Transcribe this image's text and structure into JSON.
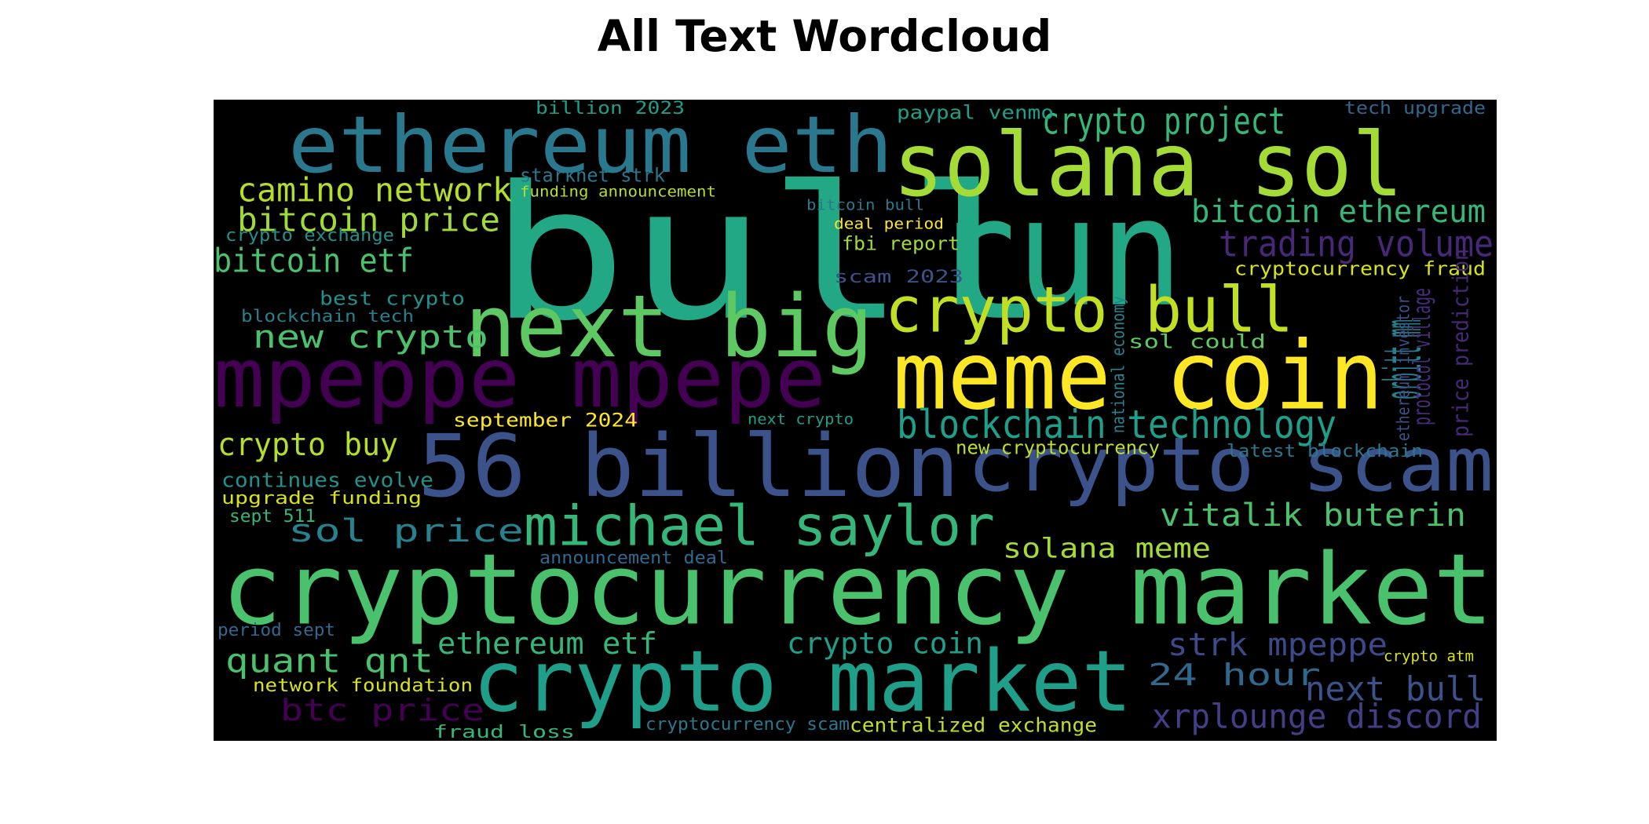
{
  "title": "All Text Wordcloud",
  "words": [
    {
      "text": "bull",
      "color": "#22a884"
    },
    {
      "text": "run",
      "color": "#22a884"
    },
    {
      "text": "ethereum eth",
      "color": "#2a788e"
    },
    {
      "text": "solana sol",
      "color": "#a5db36"
    },
    {
      "text": "next big",
      "color": "#5ec962"
    },
    {
      "text": "crypto bull",
      "color": "#c2df23"
    },
    {
      "text": "meme coin",
      "color": "#fde725"
    },
    {
      "text": "mpeppe mpepe",
      "color": "#440154"
    },
    {
      "text": "56 billion",
      "color": "#3b528b"
    },
    {
      "text": "crypto scam",
      "color": "#3b528b"
    },
    {
      "text": "cryptocurrency market",
      "color": "#4ac16d"
    },
    {
      "text": "crypto market",
      "color": "#1f9e89"
    },
    {
      "text": "michael saylor",
      "color": "#35b779"
    },
    {
      "text": "crypto project",
      "color": "#35b779"
    },
    {
      "text": "camino network",
      "color": "#b5de2b"
    },
    {
      "text": "bitcoin price",
      "color": "#a0da39"
    },
    {
      "text": "bitcoin etf",
      "color": "#4ac16d"
    },
    {
      "text": "bitcoin ethereum",
      "color": "#35b779"
    },
    {
      "text": "trading volume",
      "color": "#482878"
    },
    {
      "text": "blockchain technology",
      "color": "#1f9e89"
    },
    {
      "text": "vitalik buterin",
      "color": "#4ac16d"
    },
    {
      "text": "orbitt mm",
      "color": "#26828e"
    },
    {
      "text": "new crypto",
      "color": "#4ac16d"
    },
    {
      "text": "crypto buy",
      "color": "#b5de2b"
    },
    {
      "text": "sol price",
      "color": "#26828e"
    },
    {
      "text": "solana meme",
      "color": "#a5db36"
    },
    {
      "text": "ethereum etf",
      "color": "#35b779"
    },
    {
      "text": "crypto coin",
      "color": "#1f9e89"
    },
    {
      "text": "quant qnt",
      "color": "#4ac16d"
    },
    {
      "text": "strk mpeppe",
      "color": "#3e4989"
    },
    {
      "text": "24 hour",
      "color": "#31688e"
    },
    {
      "text": "next bull",
      "color": "#3b528b"
    },
    {
      "text": "xrplounge discord",
      "color": "#433e85"
    },
    {
      "text": "btc price",
      "color": "#440154"
    },
    {
      "text": "paypal venmo",
      "color": "#1f9e89"
    },
    {
      "text": "tech upgrade",
      "color": "#31688e"
    },
    {
      "text": "billion 2023",
      "color": "#1f9e89"
    },
    {
      "text": "starknet strk",
      "color": "#2a788e"
    },
    {
      "text": "funding announcement",
      "color": "#b5de2b"
    },
    {
      "text": "bitcoin bull",
      "color": "#2a788e"
    },
    {
      "text": "deal period",
      "color": "#fde725"
    },
    {
      "text": "fbi report",
      "color": "#a0da39"
    },
    {
      "text": "scam 2023",
      "color": "#3b528b"
    },
    {
      "text": "crypto exchange",
      "color": "#21918c"
    },
    {
      "text": "best crypto",
      "color": "#21918c"
    },
    {
      "text": "blockchain tech",
      "color": "#26828e"
    },
    {
      "text": "cryptocurrency fraud",
      "color": "#d8e219"
    },
    {
      "text": "sol could",
      "color": "#5ec962"
    },
    {
      "text": "september 2024",
      "color": "#fde725"
    },
    {
      "text": "next crypto",
      "color": "#1f9e89"
    },
    {
      "text": "new cryptocurrency",
      "color": "#bddf26"
    },
    {
      "text": "latest blockchain",
      "color": "#2a788e"
    },
    {
      "text": "continues evolve",
      "color": "#21918c"
    },
    {
      "text": "upgrade funding",
      "color": "#d8e219"
    },
    {
      "text": "sept 511",
      "color": "#35b779"
    },
    {
      "text": "announcement deal",
      "color": "#31688e"
    },
    {
      "text": "period sept",
      "color": "#31688e"
    },
    {
      "text": "network foundation",
      "color": "#d8e219"
    },
    {
      "text": "fraud loss",
      "color": "#35b779"
    },
    {
      "text": "cryptocurrency scam",
      "color": "#2a788e"
    },
    {
      "text": "centralized exchange",
      "color": "#c2df23"
    },
    {
      "text": "crypto atm",
      "color": "#d8e219"
    },
    {
      "text": "national economy",
      "color": "#26828e"
    },
    {
      "text": "ethereum investor",
      "color": "#3b528b"
    },
    {
      "text": "protocol village",
      "color": "#472d7b"
    },
    {
      "text": "price prediction",
      "color": "#482878"
    }
  ]
}
